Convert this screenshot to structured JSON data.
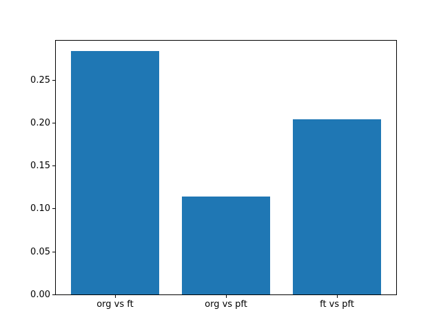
{
  "chart_data": {
    "type": "bar",
    "categories": [
      "org vs ft",
      "org vs pft",
      "ft vs pft"
    ],
    "values": [
      0.283,
      0.114,
      0.204
    ],
    "title": "",
    "xlabel": "",
    "ylabel": "",
    "yticks": [
      0.0,
      0.05,
      0.1,
      0.15,
      0.2,
      0.25
    ],
    "ytick_labels": [
      "0.00",
      "0.05",
      "0.10",
      "0.15",
      "0.20",
      "0.25"
    ],
    "ylim": [
      0,
      0.297
    ],
    "xlim": [
      -0.54,
      2.54
    ],
    "bar_width": 0.8,
    "bar_color": "#1f77b4",
    "grid": false,
    "legend_position": "none"
  }
}
